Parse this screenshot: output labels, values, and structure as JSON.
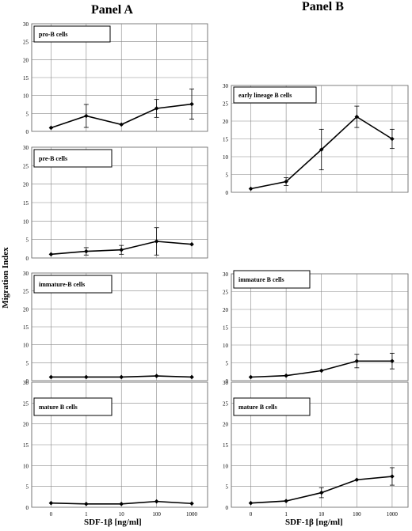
{
  "titles": {
    "panel_a": "Panel A",
    "panel_b": "Panel B"
  },
  "axis": {
    "ylabel": "Migration Index",
    "xlabel_a": "SDF-1β [ng/ml]",
    "xlabel_b": "SDF-1β [ng/ml]"
  },
  "chart_data": [
    {
      "type": "line",
      "panel": "Panel A",
      "title": "pro-B cells",
      "categories": [
        "0",
        "1",
        "10",
        "100",
        "1000"
      ],
      "values": [
        1,
        4.3,
        1.9,
        6.4,
        7.6
      ],
      "errors": [
        0,
        3.2,
        0,
        2.5,
        4.2
      ],
      "ylim": [
        0,
        30
      ],
      "yticks": [
        0,
        5,
        10,
        15,
        20,
        25,
        30
      ],
      "show_xticks": false,
      "grid": "vertical"
    },
    {
      "type": "line",
      "panel": "Panel A",
      "title": "pre-B cells",
      "categories": [
        "0",
        "1",
        "10",
        "100",
        "1000"
      ],
      "values": [
        1,
        1.8,
        2.2,
        4.5,
        3.7
      ],
      "errors": [
        0,
        1.0,
        1.2,
        3.7,
        0
      ],
      "ylim": [
        0,
        30
      ],
      "yticks": [
        0,
        5,
        10,
        15,
        20,
        25,
        30
      ],
      "show_xticks": false,
      "grid": "vertical"
    },
    {
      "type": "line",
      "panel": "Panel A",
      "title": "immature-B cells",
      "categories": [
        "0",
        "1",
        "10",
        "100",
        "1000"
      ],
      "values": [
        1,
        1,
        1,
        1.3,
        1
      ],
      "errors": [
        0,
        0,
        0,
        0,
        0
      ],
      "ylim": [
        0,
        30
      ],
      "yticks": [
        0,
        5,
        10,
        15,
        20,
        25,
        30
      ],
      "show_xticks": false,
      "grid": "vertical"
    },
    {
      "type": "line",
      "panel": "Panel A",
      "title": "mature B cells",
      "categories": [
        "0",
        "1",
        "10",
        "100",
        "1000"
      ],
      "values": [
        1,
        0.8,
        0.8,
        1.4,
        0.9
      ],
      "errors": [
        0,
        0,
        0,
        0,
        0
      ],
      "ylim": [
        0,
        30
      ],
      "yticks": [
        0,
        5,
        10,
        15,
        20,
        25,
        30
      ],
      "show_xticks": true,
      "grid": "vertical"
    },
    {
      "type": "line",
      "panel": "Panel B",
      "title": "early  lineage B cells",
      "categories": [
        "0",
        "1",
        "10",
        "100",
        "1000"
      ],
      "values": [
        1,
        3,
        12,
        21.2,
        15
      ],
      "errors": [
        0,
        1.1,
        5.7,
        3.0,
        2.7
      ],
      "ylim": [
        0,
        30
      ],
      "yticks": [
        0,
        5,
        10,
        15,
        20,
        25,
        30
      ],
      "show_xticks": false,
      "grid": "vertical"
    },
    {
      "type": "line",
      "panel": "Panel B",
      "title": "immature B cells",
      "categories": [
        "0",
        "1",
        "10",
        "100",
        "1000"
      ],
      "values": [
        1,
        1.4,
        2.8,
        5.5,
        5.5
      ],
      "errors": [
        0,
        0,
        0,
        1.9,
        2.2
      ],
      "ylim": [
        0,
        30
      ],
      "yticks": [
        0,
        5,
        10,
        15,
        20,
        25,
        30
      ],
      "show_xticks": false,
      "grid": "vertical"
    },
    {
      "type": "line",
      "panel": "Panel B",
      "title": "mature B cells",
      "categories": [
        "0",
        "1",
        "10",
        "100",
        "1000"
      ],
      "values": [
        1,
        1.5,
        3.5,
        6.6,
        7.4
      ],
      "errors": [
        0,
        0,
        1.2,
        0,
        2.1
      ],
      "ylim": [
        0,
        30
      ],
      "yticks": [
        0,
        5,
        10,
        15,
        20,
        25,
        30
      ],
      "show_xticks": true,
      "grid": "vertical"
    }
  ]
}
